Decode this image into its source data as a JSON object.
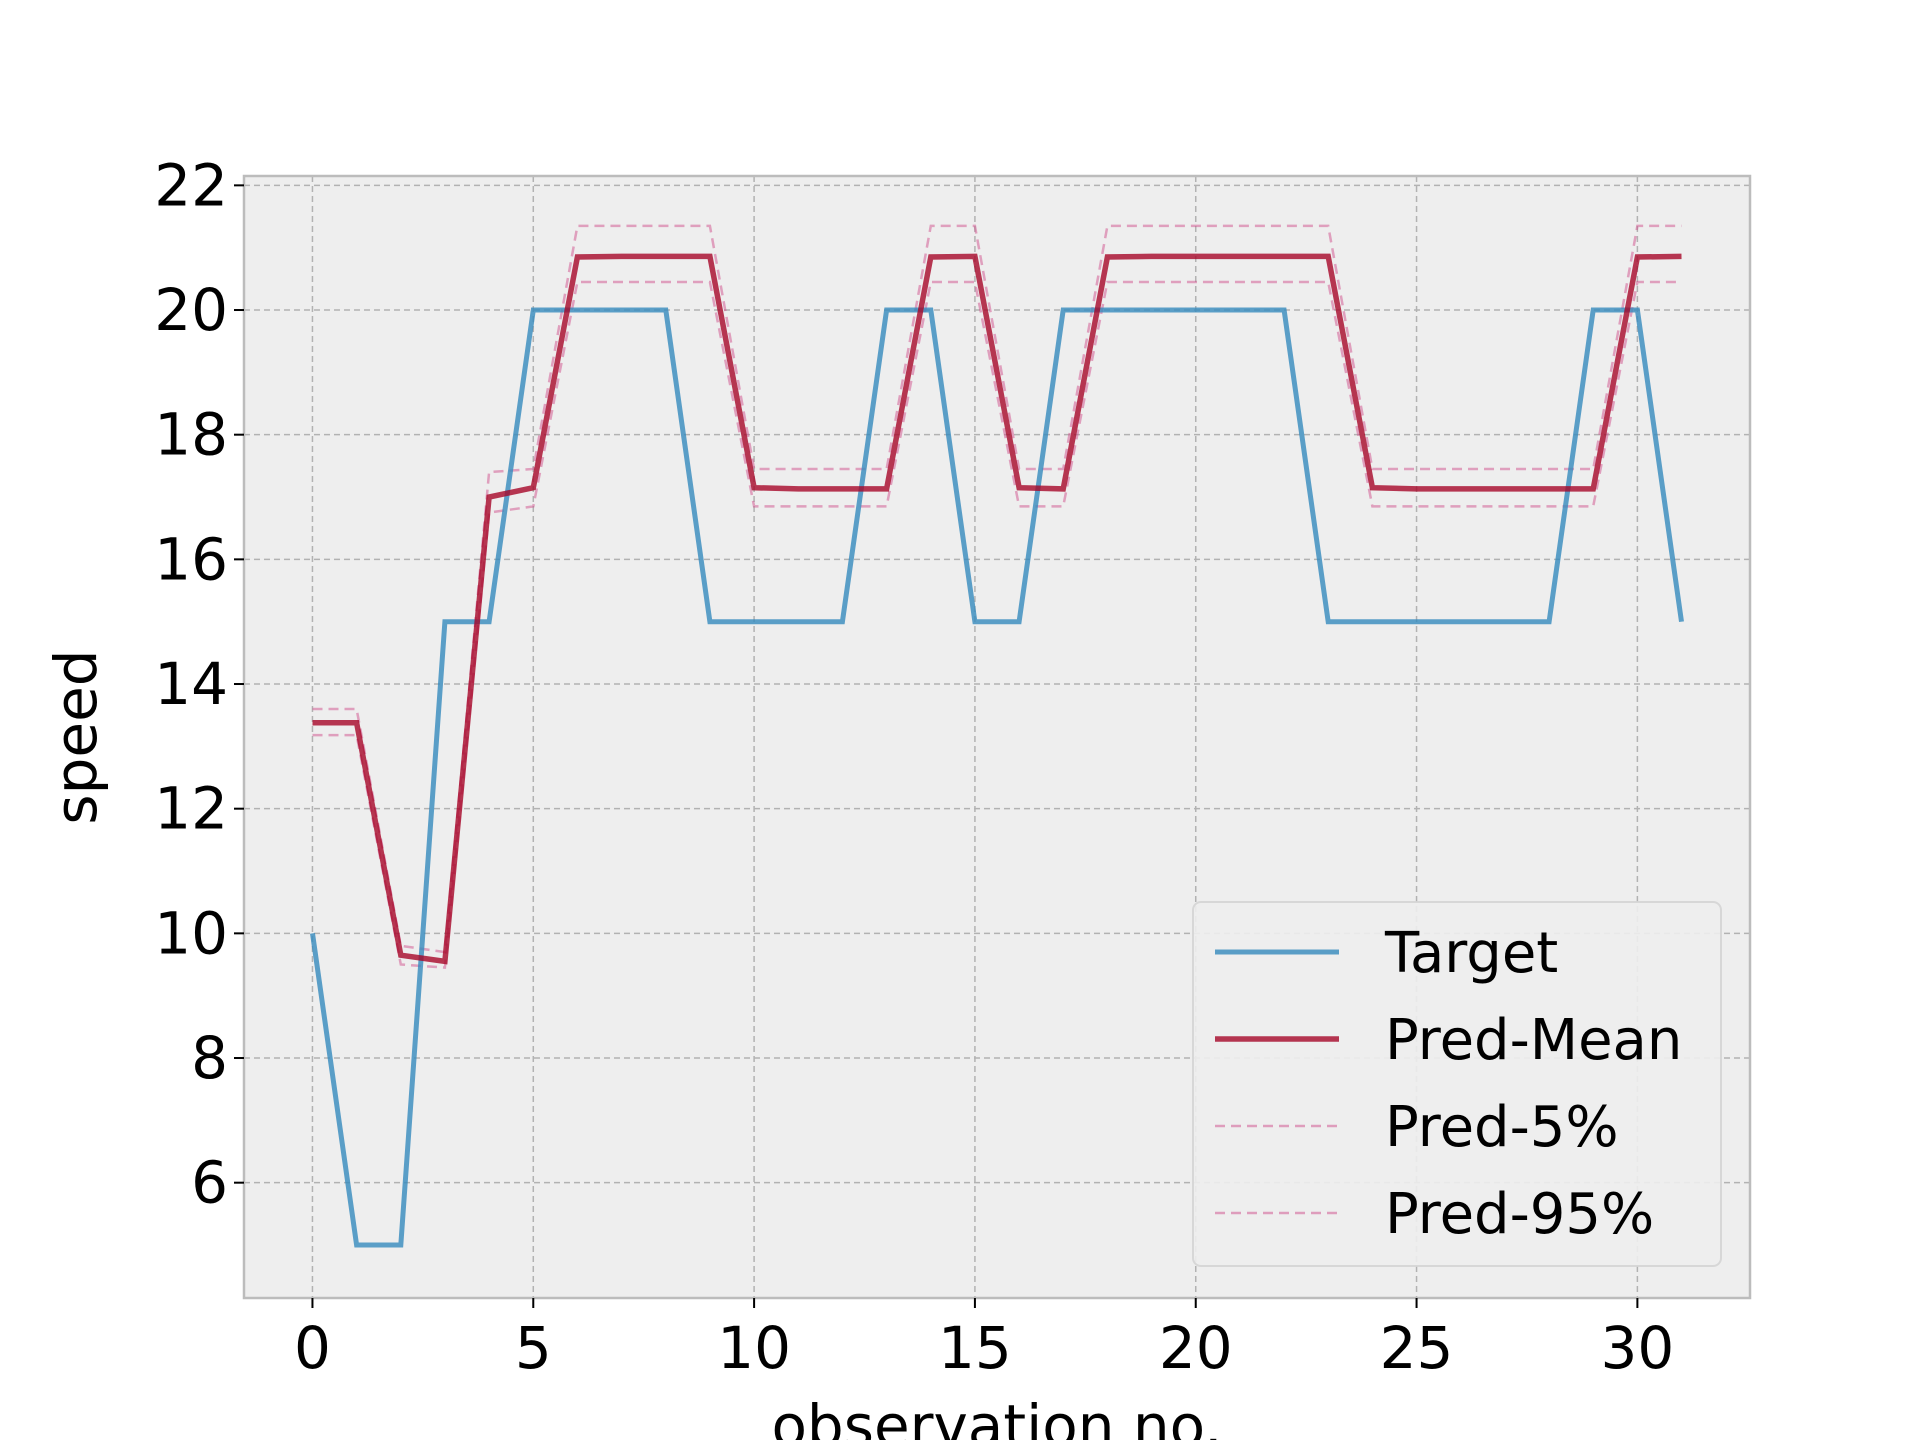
{
  "chart_data": {
    "type": "line",
    "title": "",
    "xlabel": "observation no.",
    "ylabel": "speed",
    "xlim": [
      -1.55,
      32.55
    ],
    "ylim": [
      4.15,
      22.15
    ],
    "xticks": [
      0,
      5,
      10,
      15,
      20,
      25,
      30
    ],
    "yticks": [
      6,
      8,
      10,
      12,
      14,
      16,
      18,
      20,
      22
    ],
    "grid": true,
    "legend_position": "lower-right",
    "x": [
      0,
      1,
      2,
      3,
      4,
      5,
      6,
      7,
      8,
      9,
      10,
      11,
      12,
      13,
      14,
      15,
      16,
      17,
      18,
      19,
      20,
      21,
      22,
      23,
      24,
      25,
      26,
      27,
      28,
      29,
      30,
      31
    ],
    "series": [
      {
        "name": "Target",
        "color": "#348ABD",
        "style": "solid",
        "values": [
          10,
          5,
          5,
          15,
          15,
          20,
          20,
          20,
          20,
          15,
          15,
          15,
          15,
          20,
          20,
          15,
          15,
          20,
          20,
          20,
          20,
          20,
          20,
          15,
          15,
          15,
          15,
          15,
          15,
          20,
          20,
          15
        ]
      },
      {
        "name": "Pred-Mean",
        "color": "#A60628",
        "style": "solid",
        "values": [
          13.38,
          13.38,
          9.65,
          9.55,
          17.0,
          17.15,
          20.85,
          20.86,
          20.86,
          20.86,
          17.15,
          17.13,
          17.13,
          17.13,
          20.85,
          20.86,
          17.15,
          17.13,
          20.85,
          20.86,
          20.86,
          20.86,
          20.86,
          20.86,
          17.15,
          17.13,
          17.13,
          17.13,
          17.13,
          17.13,
          20.85,
          20.86
        ]
      },
      {
        "name": "Pred-5%",
        "color": "#CF4F8B",
        "style": "dashed",
        "values": [
          13.18,
          13.18,
          9.5,
          9.45,
          16.75,
          16.85,
          20.45,
          20.45,
          20.45,
          20.45,
          16.85,
          16.85,
          16.85,
          16.85,
          20.45,
          20.45,
          16.85,
          16.85,
          20.45,
          20.45,
          20.45,
          20.45,
          20.45,
          20.45,
          16.85,
          16.85,
          16.85,
          16.85,
          16.85,
          16.85,
          20.45,
          20.45
        ]
      },
      {
        "name": "Pred-95%",
        "color": "#CF4F8B",
        "style": "dashed",
        "values": [
          13.6,
          13.6,
          9.8,
          9.7,
          17.4,
          17.45,
          21.35,
          21.35,
          21.35,
          21.35,
          17.45,
          17.45,
          17.45,
          17.45,
          21.35,
          21.35,
          17.45,
          17.45,
          21.35,
          21.35,
          21.35,
          21.35,
          21.35,
          21.35,
          17.45,
          17.45,
          17.45,
          17.45,
          17.45,
          17.45,
          21.35,
          21.35
        ]
      }
    ]
  }
}
